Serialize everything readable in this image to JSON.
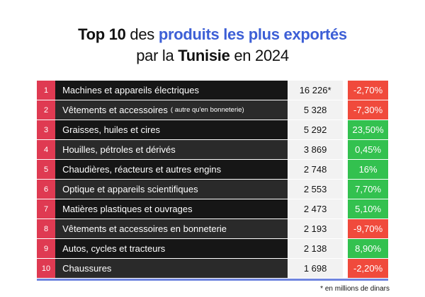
{
  "title": {
    "line1_bold": "Top 10",
    "line1_a": "des",
    "line1_blue": "produits les plus exportés",
    "line2_a": "par la",
    "line2_bold": "Tunisie",
    "line2_b": "en 2024"
  },
  "colors": {
    "rank_red": "#df3a52",
    "negative": "#f04a3c",
    "positive": "#33c14f",
    "accent_blue": "#3d5fd6"
  },
  "rows": [
    {
      "rank": "1",
      "name": "Machines et appareils électriques",
      "note": "",
      "value": "16 226*",
      "change": "-2,70%",
      "trend": "neg"
    },
    {
      "rank": "2",
      "name": "Vêtements et accessoires",
      "note": "( autre qu'en bonneterie)",
      "value": "5 328",
      "change": "-7,30%",
      "trend": "neg"
    },
    {
      "rank": "3",
      "name": "Graisses, huiles et cires",
      "note": "",
      "value": "5 292",
      "change": "23,50%",
      "trend": "pos"
    },
    {
      "rank": "4",
      "name": "Houilles, pétroles et dérivés",
      "note": "",
      "value": "3 869",
      "change": "0,45%",
      "trend": "pos"
    },
    {
      "rank": "5",
      "name": "Chaudières, réacteurs et autres engins",
      "note": "",
      "value": "2 748",
      "change": "16%",
      "trend": "pos"
    },
    {
      "rank": "6",
      "name": "Optique et appareils scientifiques",
      "note": "",
      "value": "2 553",
      "change": "7,70%",
      "trend": "pos"
    },
    {
      "rank": "7",
      "name": "Matières plastiques et ouvrages",
      "note": "",
      "value": "2 473",
      "change": "5,10%",
      "trend": "pos"
    },
    {
      "rank": "8",
      "name": "Vêtements et accessoires en bonneterie",
      "note": "",
      "value": "2 193",
      "change": "-9,70%",
      "trend": "neg"
    },
    {
      "rank": "9",
      "name": "Autos, cycles et tracteurs",
      "note": "",
      "value": "2 138",
      "change": "8,90%",
      "trend": "pos"
    },
    {
      "rank": "10",
      "name": "Chaussures",
      "note": "",
      "value": "1 698",
      "change": "-2,20%",
      "trend": "neg"
    }
  ],
  "footnote": "* en millions de dinars"
}
